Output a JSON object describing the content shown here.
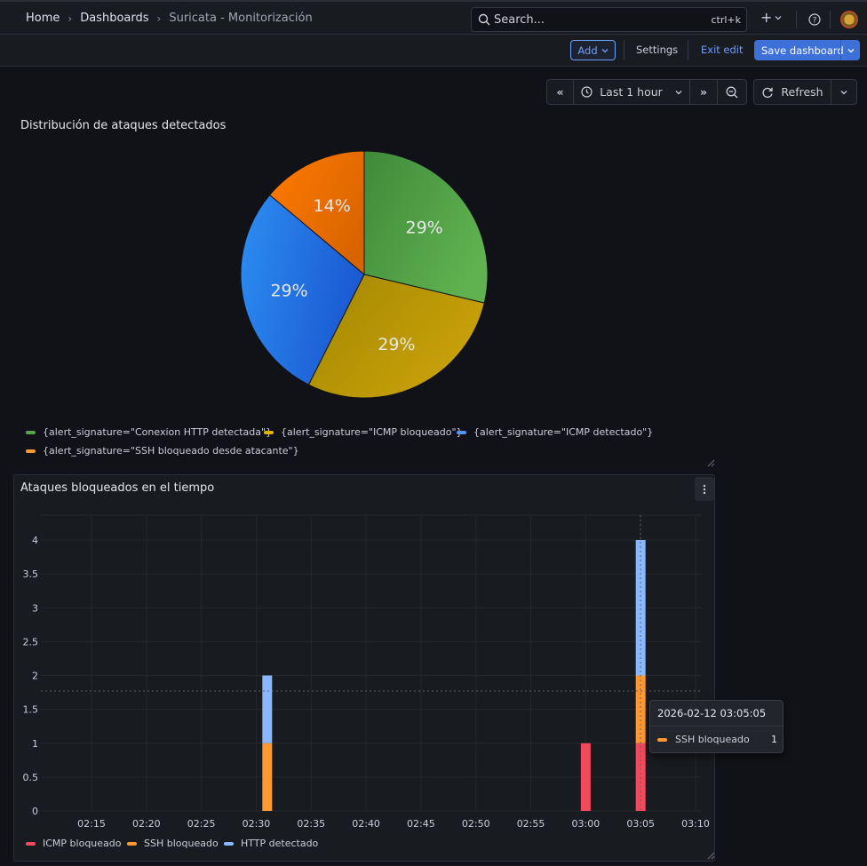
{
  "nav": {
    "breadcrumbs": [
      "Home",
      "Dashboards",
      "Suricata - Monitorización"
    ],
    "search_placeholder": "Search...",
    "search_shortcut": "ctrl+k"
  },
  "toolbar": {
    "add_label": "Add",
    "settings_label": "Settings",
    "exit_edit_label": "Exit edit",
    "save_label": "Save dashboard"
  },
  "time_controls": {
    "range_label": "Last 1 hour",
    "refresh_label": "Refresh"
  },
  "colors": {
    "green": "#56a64b",
    "yellow": "#c69e06",
    "blue": "#3274d9",
    "orange": "#ff780a",
    "red": "#f2495c",
    "ssh_orange": "#ff9830",
    "light_blue": "#8ab8ff"
  },
  "panels": {
    "pie_title": "Distribución de ataques detectados",
    "bar_title": "Ataques bloqueados en el tiempo"
  },
  "tooltip": {
    "time": "2026-02-12 03:05:05",
    "series": "SSH bloqueado",
    "value": "1"
  },
  "chart_data": [
    {
      "type": "pie",
      "title": "Distribución de ataques detectados",
      "slices": [
        {
          "label": "{alert_signature=\"Conexion HTTP detectada\"}",
          "value": 29,
          "display": "29%",
          "color": "#56a64b"
        },
        {
          "label": "{alert_signature=\"ICMP bloqueado\"}",
          "value": 29,
          "display": "29%",
          "color": "#c69e06"
        },
        {
          "label": "{alert_signature=\"ICMP detectado\"}",
          "value": 29,
          "display": "29%",
          "color": "#3274d9"
        },
        {
          "label": "{alert_signature=\"SSH bloqueado desde atacante\"}",
          "value": 14,
          "display": "14%",
          "color": "#ff780a"
        }
      ],
      "legend_position": "bottom"
    },
    {
      "type": "bar",
      "title": "Ataques bloqueados en el tiempo",
      "stacked": true,
      "x_ticks": [
        "02:15",
        "02:20",
        "02:25",
        "02:30",
        "02:35",
        "02:40",
        "02:45",
        "02:50",
        "02:55",
        "03:00",
        "03:05",
        "03:10"
      ],
      "y_ticks": [
        "0",
        "0.5",
        "1",
        "1.5",
        "2",
        "2.5",
        "3",
        "3.5",
        "4"
      ],
      "ylim": [
        0,
        4
      ],
      "series": [
        {
          "name": "ICMP bloqueado",
          "color": "#f2495c",
          "points": [
            {
              "x": "03:00",
              "y": 1
            },
            {
              "x": "03:05",
              "y": 1
            }
          ]
        },
        {
          "name": "SSH bloqueado",
          "color": "#ff9830",
          "points": [
            {
              "x": "02:31",
              "y": 1
            },
            {
              "x": "03:05",
              "y": 1
            }
          ]
        },
        {
          "name": "HTTP detectado",
          "color": "#8ab8ff",
          "points": [
            {
              "x": "02:31",
              "y": 1
            },
            {
              "x": "03:05",
              "y": 2
            }
          ]
        }
      ],
      "legend_position": "bottom",
      "grid": true
    }
  ]
}
